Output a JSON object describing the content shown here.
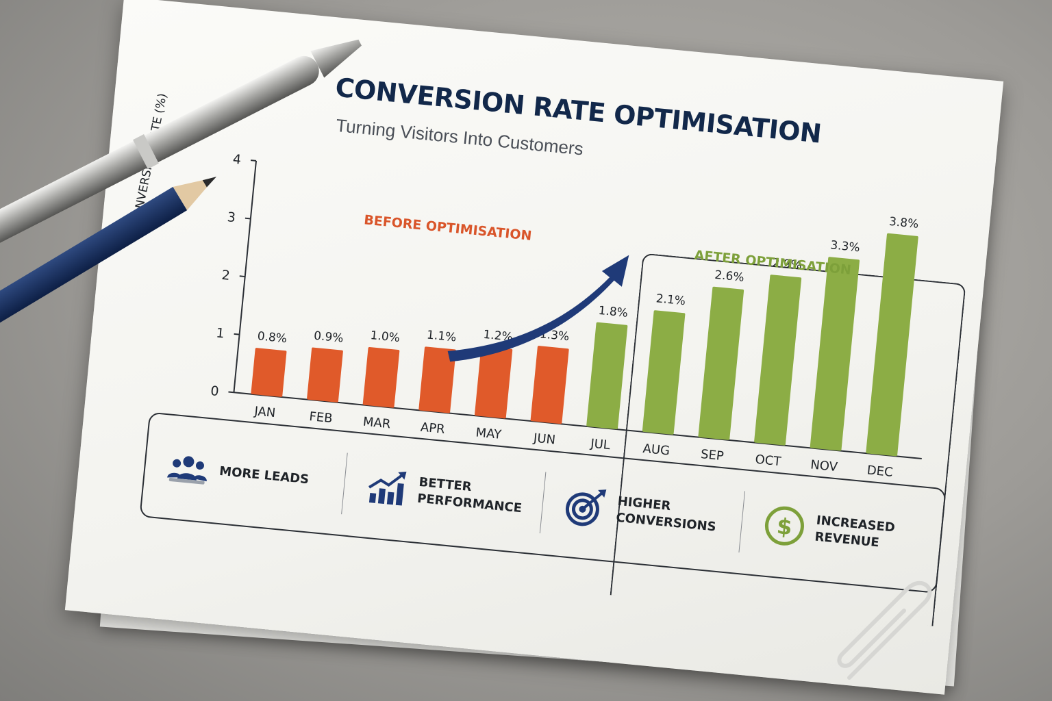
{
  "title": "CONVERSION RATE OPTIMISATION",
  "subtitle": "Turning Visitors Into Customers",
  "colors": {
    "before": "#e05a2a",
    "after": "#8cad45",
    "title": "#12284a",
    "arrow": "#1f3a78"
  },
  "chart_data": {
    "type": "bar",
    "title": "CONVERSION RATE OPTIMISATION",
    "subtitle": "Turning Visitors Into Customers",
    "xlabel": "",
    "ylabel": "CONVERSION RATE (%)",
    "ylim": [
      0,
      4
    ],
    "yticks": [
      "0",
      "1",
      "2",
      "3",
      "4"
    ],
    "categories": [
      "JAN",
      "FEB",
      "MAR",
      "APR",
      "MAY",
      "JUN",
      "JUL",
      "AUG",
      "SEP",
      "OCT",
      "NOV",
      "DEC"
    ],
    "series": [
      {
        "name": "BEFORE OPTIMISATION",
        "color": "#e05a2a",
        "values": [
          0.8,
          0.9,
          1.0,
          1.1,
          1.2,
          1.3,
          null,
          null,
          null,
          null,
          null,
          null
        ]
      },
      {
        "name": "AFTER OPTIMISATION",
        "color": "#8cad45",
        "values": [
          null,
          null,
          null,
          null,
          null,
          null,
          1.8,
          2.1,
          2.6,
          2.9,
          3.3,
          3.8
        ]
      }
    ],
    "data_labels": [
      "0.8%",
      "0.9%",
      "1.0%",
      "1.1%",
      "1.2%",
      "1.3%",
      "1.8%",
      "2.1%",
      "2.6%",
      "2.9%",
      "3.3%",
      "3.8%"
    ],
    "grid": false,
    "legend": "text labels above bar groups"
  },
  "benefits": [
    {
      "icon": "people-group-icon",
      "label": "MORE LEADS"
    },
    {
      "icon": "rising-bar-chart-icon",
      "label": "BETTER PERFORMANCE"
    },
    {
      "icon": "target-arrow-icon",
      "label": "HIGHER CONVERSIONS"
    },
    {
      "icon": "dollar-coin-icon",
      "label": "INCREASED REVENUE"
    }
  ],
  "props": [
    "silver-pen-icon",
    "blue-pencil-icon",
    "paper-clip-icon",
    "upward-trend-arrow-icon"
  ]
}
